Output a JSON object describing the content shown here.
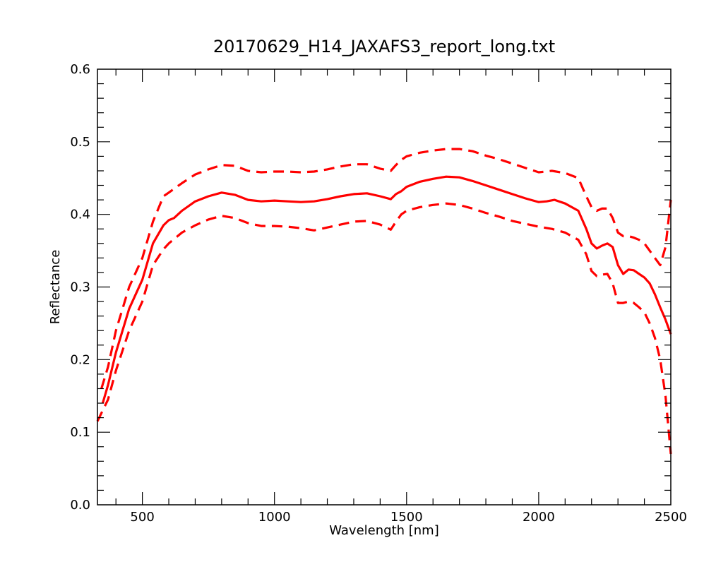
{
  "chart_data": {
    "type": "line",
    "title": "20170629_H14_JAXAFS3_report_long.txt",
    "xlabel": "Wavelength [nm]",
    "ylabel": "Reflectance",
    "xlim": [
      330,
      2500
    ],
    "ylim": [
      0.0,
      0.6
    ],
    "grid": false,
    "x_ticks": [
      {
        "value": 500,
        "label": "500"
      },
      {
        "value": 1000,
        "label": "1000"
      },
      {
        "value": 1500,
        "label": "1500"
      },
      {
        "value": 2000,
        "label": "2000"
      },
      {
        "value": 2500,
        "label": "2500"
      }
    ],
    "y_ticks": [
      {
        "value": 0.0,
        "label": "0.0"
      },
      {
        "value": 0.1,
        "label": "0.1"
      },
      {
        "value": 0.2,
        "label": "0.2"
      },
      {
        "value": 0.3,
        "label": "0.3"
      },
      {
        "value": 0.4,
        "label": "0.4"
      },
      {
        "value": 0.5,
        "label": "0.5"
      },
      {
        "value": 0.6,
        "label": "0.6"
      }
    ],
    "series_color": "#ff0000",
    "series": [
      {
        "style": "solid",
        "x": [
          350,
          370,
          400,
          450,
          500,
          540,
          580,
          600,
          620,
          650,
          700,
          750,
          800,
          850,
          900,
          950,
          1000,
          1050,
          1100,
          1150,
          1200,
          1250,
          1300,
          1350,
          1400,
          1440,
          1460,
          1480,
          1500,
          1550,
          1600,
          1650,
          1700,
          1750,
          1800,
          1850,
          1900,
          1950,
          2000,
          2030,
          2060,
          2100,
          2150,
          2180,
          2200,
          2220,
          2240,
          2260,
          2280,
          2300,
          2320,
          2340,
          2360,
          2380,
          2400,
          2420,
          2440,
          2460,
          2480,
          2500
        ],
        "y": [
          0.14,
          0.165,
          0.21,
          0.27,
          0.31,
          0.36,
          0.385,
          0.392,
          0.395,
          0.405,
          0.418,
          0.425,
          0.43,
          0.427,
          0.42,
          0.418,
          0.419,
          0.418,
          0.417,
          0.418,
          0.421,
          0.425,
          0.428,
          0.429,
          0.425,
          0.421,
          0.428,
          0.432,
          0.438,
          0.445,
          0.449,
          0.452,
          0.451,
          0.446,
          0.44,
          0.434,
          0.428,
          0.422,
          0.417,
          0.418,
          0.42,
          0.415,
          0.405,
          0.38,
          0.36,
          0.353,
          0.357,
          0.36,
          0.355,
          0.33,
          0.318,
          0.324,
          0.323,
          0.318,
          0.313,
          0.305,
          0.29,
          0.272,
          0.255,
          0.235
        ]
      },
      {
        "style": "dashed",
        "x": [
          345,
          370,
          400,
          450,
          500,
          540,
          580,
          600,
          650,
          700,
          750,
          800,
          850,
          900,
          950,
          1000,
          1050,
          1100,
          1150,
          1200,
          1250,
          1300,
          1350,
          1400,
          1440,
          1460,
          1480,
          1500,
          1550,
          1600,
          1650,
          1700,
          1750,
          1800,
          1850,
          1900,
          1950,
          2000,
          2050,
          2100,
          2150,
          2180,
          2200,
          2220,
          2240,
          2260,
          2280,
          2300,
          2320,
          2340,
          2360,
          2380,
          2400,
          2420,
          2440,
          2460,
          2480,
          2500
        ],
        "y": [
          0.16,
          0.19,
          0.24,
          0.3,
          0.34,
          0.39,
          0.425,
          0.43,
          0.443,
          0.455,
          0.462,
          0.468,
          0.467,
          0.46,
          0.458,
          0.459,
          0.459,
          0.458,
          0.459,
          0.462,
          0.466,
          0.469,
          0.469,
          0.463,
          0.46,
          0.468,
          0.475,
          0.48,
          0.485,
          0.488,
          0.49,
          0.49,
          0.487,
          0.481,
          0.476,
          0.47,
          0.464,
          0.458,
          0.46,
          0.457,
          0.45,
          0.425,
          0.41,
          0.405,
          0.408,
          0.408,
          0.395,
          0.375,
          0.37,
          0.37,
          0.368,
          0.365,
          0.36,
          0.35,
          0.34,
          0.33,
          0.355,
          0.42
        ]
      },
      {
        "style": "dashed",
        "x": [
          330,
          350,
          370,
          400,
          450,
          500,
          540,
          580,
          600,
          650,
          700,
          750,
          800,
          850,
          900,
          950,
          1000,
          1050,
          1100,
          1150,
          1200,
          1250,
          1300,
          1350,
          1400,
          1440,
          1460,
          1480,
          1500,
          1550,
          1600,
          1650,
          1700,
          1750,
          1800,
          1850,
          1900,
          1950,
          2000,
          2050,
          2100,
          2150,
          2180,
          2200,
          2220,
          2240,
          2260,
          2280,
          2300,
          2320,
          2340,
          2360,
          2380,
          2400,
          2420,
          2440,
          2460,
          2480,
          2500
        ],
        "y": [
          0.115,
          0.13,
          0.145,
          0.185,
          0.24,
          0.28,
          0.33,
          0.352,
          0.36,
          0.375,
          0.385,
          0.393,
          0.398,
          0.395,
          0.388,
          0.384,
          0.384,
          0.383,
          0.381,
          0.378,
          0.382,
          0.386,
          0.39,
          0.391,
          0.386,
          0.379,
          0.39,
          0.4,
          0.405,
          0.41,
          0.413,
          0.415,
          0.413,
          0.408,
          0.402,
          0.397,
          0.391,
          0.387,
          0.383,
          0.38,
          0.375,
          0.365,
          0.345,
          0.322,
          0.315,
          0.317,
          0.318,
          0.305,
          0.278,
          0.278,
          0.28,
          0.278,
          0.272,
          0.265,
          0.25,
          0.23,
          0.2,
          0.15,
          0.07
        ]
      }
    ]
  }
}
